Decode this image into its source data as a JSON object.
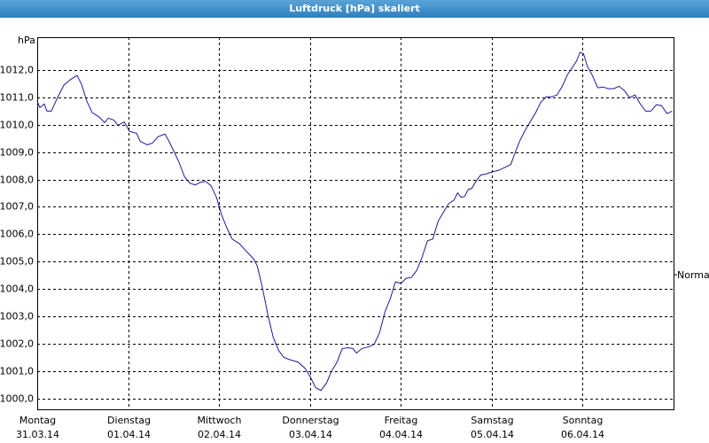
{
  "chart_data": {
    "type": "line",
    "title": "Luftdruck [hPa] skaliert",
    "y_label": "hPa",
    "xlim": [
      0,
      7
    ],
    "ylim": [
      999.6,
      1013.2
    ],
    "xticks": [
      {
        "value": 0,
        "label": "Montag",
        "date": "31.03.14"
      },
      {
        "value": 1,
        "label": "Dienstag",
        "date": "01.04.14"
      },
      {
        "value": 2,
        "label": "Mittwoch",
        "date": "02.04.14"
      },
      {
        "value": 3,
        "label": "Donnerstag",
        "date": "03.04.14"
      },
      {
        "value": 4,
        "label": "Freitag",
        "date": "04.04.14"
      },
      {
        "value": 5,
        "label": "Samstag",
        "date": "05.04.14"
      },
      {
        "value": 6,
        "label": "Sonntag",
        "date": "06.04.14"
      }
    ],
    "yticks": [
      {
        "value": 1000,
        "label": "1000,0"
      },
      {
        "value": 1001,
        "label": "1001,0"
      },
      {
        "value": 1002,
        "label": "1002,0"
      },
      {
        "value": 1003,
        "label": "1003,0"
      },
      {
        "value": 1004,
        "label": "1004,0"
      },
      {
        "value": 1005,
        "label": "1005,0"
      },
      {
        "value": 1006,
        "label": "1006,0"
      },
      {
        "value": 1007,
        "label": "1007,0"
      },
      {
        "value": 1008,
        "label": "1008,0"
      },
      {
        "value": 1009,
        "label": "1009,0"
      },
      {
        "value": 1010,
        "label": "1010,0"
      },
      {
        "value": 1011,
        "label": "1011,0"
      },
      {
        "value": 1012,
        "label": "1012,0"
      }
    ],
    "grid": true,
    "annotations": [
      {
        "text": "Normal",
        "y": 1004.52
      }
    ],
    "series": [
      {
        "color": "#1a1aa0",
        "x": [
          0,
          0.029,
          0.078,
          0.107,
          0.156,
          0.224,
          0.293,
          0.371,
          0.439,
          0.488,
          0.546,
          0.605,
          0.683,
          0.741,
          0.78,
          0.839,
          0.888,
          0.956,
          1.015,
          1.093,
          1.132,
          1.21,
          1.268,
          1.327,
          1.405,
          1.444,
          1.502,
          1.561,
          1.62,
          1.678,
          1.737,
          1.795,
          1.854,
          1.912,
          1.971,
          2.029,
          2.088,
          2.146,
          2.224,
          2.302,
          2.38,
          2.42,
          2.478,
          2.537,
          2.595,
          2.654,
          2.712,
          2.79,
          2.868,
          2.946,
          3.005,
          3.063,
          3.122,
          3.18,
          3.239,
          3.298,
          3.356,
          3.415,
          3.473,
          3.512,
          3.571,
          3.649,
          3.707,
          3.766,
          3.824,
          3.883,
          3.941,
          4.0,
          4.059,
          4.117,
          4.176,
          4.234,
          4.293,
          4.351,
          4.41,
          4.468,
          4.527,
          4.585,
          4.624,
          4.663,
          4.702,
          4.741,
          4.78,
          4.82,
          4.878,
          4.937,
          5.015,
          5.073,
          5.132,
          5.21,
          5.249,
          5.307,
          5.366,
          5.424,
          5.483,
          5.541,
          5.6,
          5.659,
          5.717,
          5.776,
          5.834,
          5.893,
          5.932,
          5.971,
          6.01,
          6.049,
          6.107,
          6.166,
          6.224,
          6.283,
          6.341,
          6.4,
          6.459,
          6.517,
          6.576,
          6.634,
          6.693,
          6.751,
          6.81,
          6.868,
          6.927,
          6.985
        ],
        "values": [
          1010.86,
          1010.63,
          1010.76,
          1010.5,
          1010.5,
          1011.0,
          1011.45,
          1011.67,
          1011.8,
          1011.47,
          1010.86,
          1010.44,
          1010.28,
          1010.08,
          1010.24,
          1010.18,
          1009.98,
          1010.1,
          1009.76,
          1009.69,
          1009.4,
          1009.27,
          1009.33,
          1009.56,
          1009.66,
          1009.43,
          1009.04,
          1008.62,
          1008.1,
          1007.87,
          1007.8,
          1007.9,
          1007.93,
          1007.77,
          1007.35,
          1006.7,
          1006.21,
          1005.82,
          1005.66,
          1005.37,
          1005.1,
          1004.85,
          1004.03,
          1003.06,
          1002.24,
          1001.76,
          1001.5,
          1001.4,
          1001.33,
          1001.1,
          1000.78,
          1000.39,
          1000.29,
          1000.55,
          1001.0,
          1001.33,
          1001.82,
          1001.85,
          1001.82,
          1001.66,
          1001.82,
          1001.89,
          1001.98,
          1002.4,
          1003.15,
          1003.64,
          1004.26,
          1004.2,
          1004.39,
          1004.42,
          1004.68,
          1005.17,
          1005.76,
          1005.82,
          1006.47,
          1006.8,
          1007.12,
          1007.25,
          1007.51,
          1007.35,
          1007.38,
          1007.64,
          1007.67,
          1007.9,
          1008.16,
          1008.2,
          1008.29,
          1008.33,
          1008.42,
          1008.55,
          1008.91,
          1009.4,
          1009.79,
          1010.11,
          1010.44,
          1010.83,
          1011.02,
          1011.02,
          1011.09,
          1011.41,
          1011.84,
          1012.13,
          1012.33,
          1012.65,
          1012.59,
          1012.16,
          1011.8,
          1011.35,
          1011.38,
          1011.32,
          1011.32,
          1011.41,
          1011.25,
          1010.99,
          1011.09,
          1010.76,
          1010.5,
          1010.5,
          1010.73,
          1010.7,
          1010.41,
          1010.5
        ]
      }
    ]
  }
}
